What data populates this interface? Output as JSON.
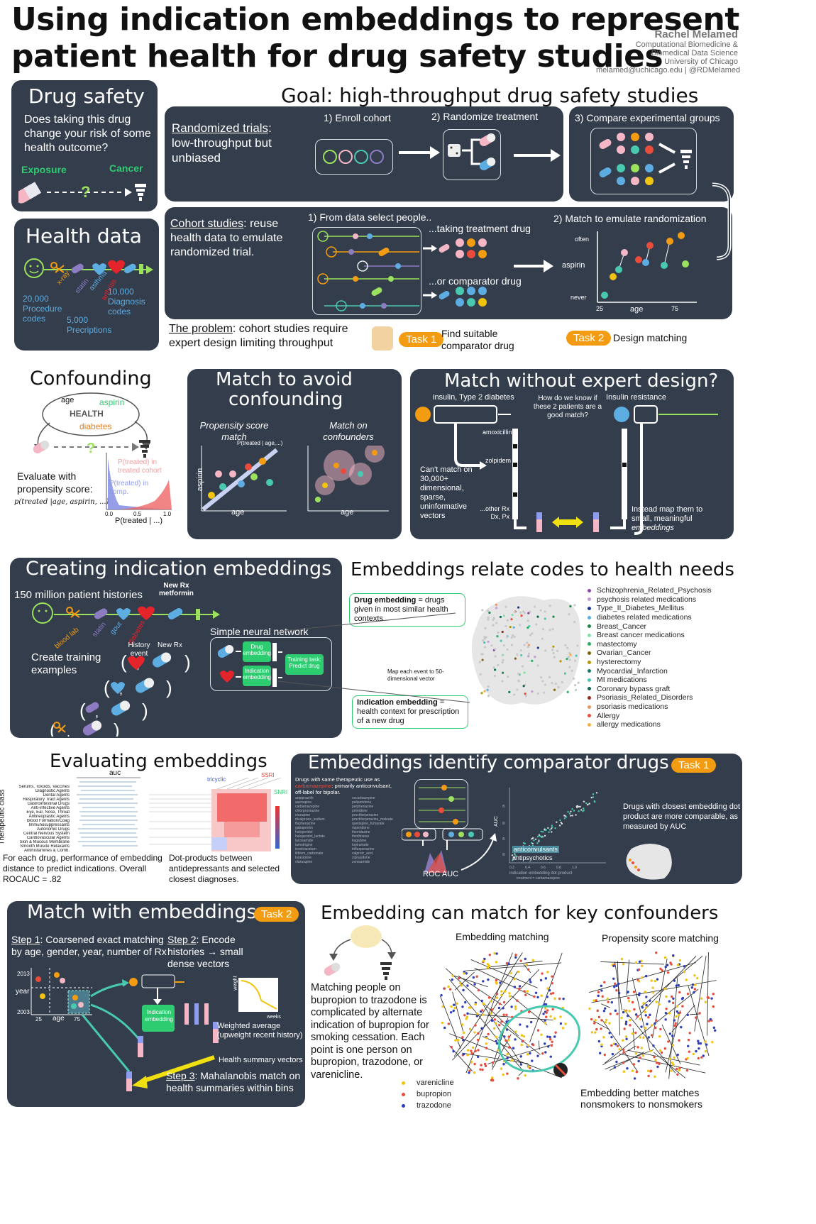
{
  "header": {
    "title_line1": "Using indication embeddings to represent",
    "title_line2": "patient health for drug safety studies",
    "author": "Rachel Melamed",
    "affil1": "Computational Biomedicine &",
    "affil2": "Biomedical Data Science",
    "affil3": "University of Chicago",
    "contact": "melamed@uchicago.edu | @RDMelamed"
  },
  "drug_safety": {
    "title": "Drug safety",
    "question": "Does taking this drug change your risk of some health outcome?",
    "exposure": "Exposure",
    "cancer": "Cancer"
  },
  "health_data": {
    "title": "Health data",
    "proc": "20,000 Procedure codes",
    "diag": "10,000 Diagnosis codes",
    "presc": "5,000 Precriptions",
    "xray": "x-ray",
    "statin": "statin",
    "asthma": "asthma",
    "arthritis": "arthritis"
  },
  "goal": {
    "title": "Goal: high-throughput drug safety studies",
    "rct_label": "Randomized trials",
    "rct_text": ": low-throughput but unbiased",
    "step1": "1) Enroll cohort",
    "step2": "2) Randomize treatment",
    "step3": "3) Compare experimental groups",
    "cohort_label": "Cohort studies",
    "cohort_text": ": reuse health data to emulate randomized trial.",
    "select": "1) From data select people..",
    "taking": "...taking treatment drug",
    "comparator": "...or comparator drug",
    "match": "2) Match to emulate randomization",
    "often": "often",
    "aspirin": "aspirin",
    "never": "never",
    "x25": "25",
    "age": "age",
    "x75": "75",
    "problem_label": "The problem",
    "problem_text": ": cohort studies require expert design limiting throughput",
    "task1": "Task 1",
    "task1_text": "Find suitable comparator drug",
    "task2": "Task 2",
    "task2_text": "Design matching"
  },
  "confounding": {
    "title": "Confounding",
    "age": "age",
    "aspirin": "aspirin",
    "health": "HEALTH",
    "diabetes": "diabetes",
    "evaluate": "Evaluate with propensity score:",
    "formula": "p(treated |age, aspirin, ...)",
    "ptreated_cohort": "P(treated) in treated cohort",
    "ptreated_comp": "P(treated) in comp.",
    "xlabel": "P(treated | ...)",
    "t0": "0.0",
    "t05": "0.5",
    "t1": "1.0"
  },
  "match_avoid": {
    "title_l1": "Match to avoid",
    "title_l2": "confounding",
    "psm": "Propensity score match",
    "ptag": "P(treated | age,...)",
    "conf": "Match on confounders",
    "aspirin": "aspirin",
    "age": "age"
  },
  "match_without": {
    "title": "Match without expert design?",
    "insulin": "insulin, Type 2 diabetes",
    "how": "How do we know if these 2 patients are a good match?",
    "resistance": "Insulin resistance",
    "amox": "amoxicillin",
    "zolpidem": "zolpidem",
    "other": "...other Rx Dx, Px",
    "cant": "Can't match on 30,000+ dimensional, sparse, uninformative vectors",
    "instead": "Instead map them to small, meaningful",
    "embeddings": "embeddings"
  },
  "creating": {
    "title": "Creating indication embeddings",
    "histories": "150 million patient histories",
    "new_rx": "New Rx",
    "metformin": "metformin",
    "blood_lab": "blood lab",
    "statin": "statin",
    "gout": "gout",
    "diabetes": "diabetes",
    "create": "Create training examples",
    "history": "History event",
    "newrx2": "New Rx",
    "snn": "Simple neural network",
    "drug_emb": "Drug embedding",
    "ind_emb": "Indication embedding",
    "training": "Training task: Predict drug"
  },
  "relate": {
    "title": "Embeddings relate codes to health needs",
    "drug_emb_b": "Drug embedding",
    "drug_emb_t": " = drugs given in most similar health contexts",
    "map_text": "Map each event to 50-dimensional vector",
    "ind_emb_b": "Indication embedding",
    "ind_emb_t": " = health context for prescription of a new drug",
    "legend": [
      {
        "label": "Schizophrenia_Related_Psychosis",
        "color": "#8e44ad"
      },
      {
        "label": "psychosis related medications",
        "color": "#c39bd3"
      },
      {
        "label": "Type_II_Diabetes_Mellitus",
        "color": "#1f3a93"
      },
      {
        "label": "diabetes related medications",
        "color": "#5dade2"
      },
      {
        "label": "Breast_Cancer",
        "color": "#1e8449"
      },
      {
        "label": "Breast cancer medications",
        "color": "#82e0aa"
      },
      {
        "label": "mastectomy",
        "color": "#27ae60"
      },
      {
        "label": "Ovarian_Cancer",
        "color": "#7d6608"
      },
      {
        "label": "hysterectomy",
        "color": "#b7950b"
      },
      {
        "label": "Myocardial_Infarction",
        "color": "#117a65"
      },
      {
        "label": "MI medications",
        "color": "#48c9b0"
      },
      {
        "label": "Coronary bypass graft",
        "color": "#0e6655"
      },
      {
        "label": "Psoriasis_Related_Disorders",
        "color": "#922b21"
      },
      {
        "label": "psoriasis medications",
        "color": "#e59866"
      },
      {
        "label": "Allergy",
        "color": "#e74c3c"
      },
      {
        "label": "allergy medications",
        "color": "#f5b041"
      }
    ]
  },
  "evaluating": {
    "title": "Evaluating embeddings",
    "auc": "auc",
    "ylabel": "Therapeutic class",
    "caption1": "For each drug, performance of embedding distance to predict indications. Overall ROCAUC = .82",
    "caption2": "Dot-products between antidepressants and selected closest diagnoses.",
    "classes": [
      "Serums, Toxoids, Vaccines",
      "Diagnostic Agents",
      "Dental Agents",
      "Respiratory Tract Agents",
      "Gastrointestinal Drugs",
      "Anti-infective Agents",
      "Eye, Ear, Nose, Throat",
      "Antineoplastic Agents",
      "Blood Formation/Coag",
      "Immunosuppressants",
      "Autonomic Drugs",
      "Central Nervous System",
      "Cardiovascular Agents",
      "Skin & Mucous Membrane",
      "Smooth Muscle Relaxants",
      "Antihistamines & Comb."
    ],
    "tricyclic": "tricyclic",
    "ssri": "SSRI",
    "snri": "SNRI"
  },
  "comparator": {
    "title": "Embeddings identify comparator drugs",
    "task": "Task 1",
    "drugs_header": "Drugs with same therapeutic use as",
    "carbamazepine": "carbamazepine",
    "offlabel": ": primarily anticonvulsant, off-label for bipolar.",
    "roc": "ROC AUC",
    "auc_label": "AUC",
    "anticonv": "anticonvulsants",
    "antipsych": "antipsychotics",
    "xlabel": "indication embedding dot product",
    "xsub": "treatment = carbamazepine",
    "closest": "Drugs with closest embedding dot product are more comparable, as measured by AUC"
  },
  "match_emb": {
    "title": "Match with embeddings",
    "task": "Task 2",
    "step1_label": "Step 1",
    "step1_text": ": Coarsened exact matching by age, gender, year, number of Rx",
    "step2_label": "Step 2",
    "step2_text": ": Encode histories → small dense vectors",
    "y2013": "2013",
    "year": "year",
    "y2003": "2003",
    "x25": "25",
    "age": "age",
    "x75": "75",
    "ind_emb": "Indication embedding",
    "weighted": "Weighted average (upweight recent history)",
    "weight": "weight",
    "weeks": "weeks",
    "summary": "Health summary vectors",
    "step3_label": "Step 3",
    "step3_text": ": Mahalanobis match on health summaries within bins"
  },
  "key_conf": {
    "title": "Embedding can match for key confounders",
    "text": "Matching people on bupropion to trazodone is complicated by alternate indication of bupropion for smoking cessation. Each point is one person on bupropion, trazodone, or varenicline.",
    "emb_matching": "Embedding matching",
    "psm": "Propensity score matching",
    "legend": [
      {
        "label": "varenicline",
        "color": "#f1c40f"
      },
      {
        "label": "bupropion",
        "color": "#e74c3c"
      },
      {
        "label": "trazodone",
        "color": "#2e3eb8"
      }
    ],
    "better": "Embedding better matches nonsmokers to nonsmokers"
  }
}
